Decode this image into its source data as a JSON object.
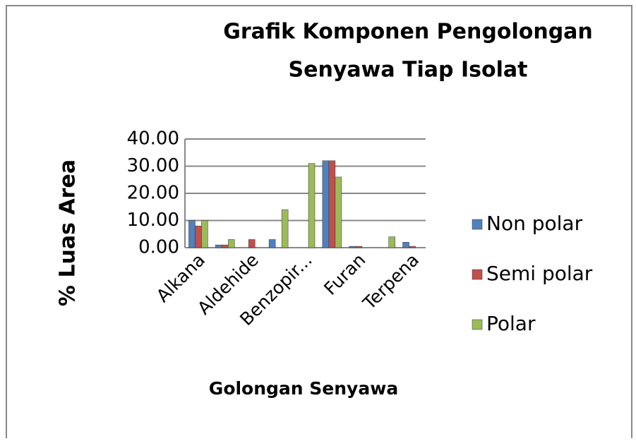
{
  "chart_data": {
    "type": "bar",
    "title": "Grafik Komponen Pengolongan Senyawa Tiap Isolat",
    "x_label": "Golongan Senyawa",
    "y_label": "% Luas Area",
    "categories": [
      "Alkana",
      null,
      "Aldehide",
      null,
      "Benzopir...",
      null,
      "Furan",
      null,
      "Terpena"
    ],
    "series": [
      {
        "name": "Non polar",
        "color": "#4f81bd",
        "values": [
          10,
          1,
          0,
          3,
          0,
          32,
          0.5,
          0,
          2
        ]
      },
      {
        "name": "Semi polar",
        "color": "#c0504d",
        "values": [
          8,
          1,
          3,
          0,
          0,
          32,
          0.5,
          0,
          0.5
        ]
      },
      {
        "name": "Polar",
        "color": "#9bbb59",
        "values": [
          10,
          3,
          0,
          14,
          31,
          26,
          0,
          4,
          0
        ]
      }
    ],
    "ylim": [
      0,
      40
    ],
    "yticks": [
      {
        "value": 0,
        "label": "0.00"
      },
      {
        "value": 10,
        "label": "10.00"
      },
      {
        "value": 20,
        "label": "20.00"
      },
      {
        "value": 30,
        "label": "30.00"
      },
      {
        "value": 40,
        "label": "40.00"
      }
    ],
    "grid": true,
    "legend": "right"
  }
}
